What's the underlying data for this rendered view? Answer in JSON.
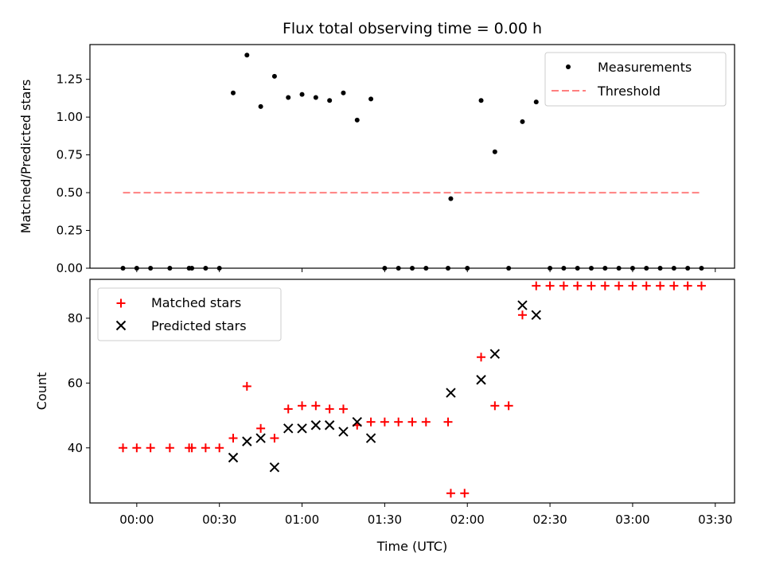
{
  "chart_data": [
    {
      "type": "scatter",
      "title": "Flux total observing time = 0.00 h",
      "xlabel": "",
      "ylabel": "Matched/Predicted stars",
      "xlim": [
        "23:43",
        "03:37"
      ],
      "ylim": [
        0,
        1.48
      ],
      "yticks": [
        "0.00",
        "0.25",
        "0.50",
        "0.75",
        "1.00",
        "1.25"
      ],
      "xtick_times": [
        "00:00",
        "00:30",
        "01:00",
        "01:30",
        "02:00",
        "02:30",
        "03:00",
        "03:30"
      ],
      "legend_position": "top-right",
      "series": [
        {
          "name": "Measurements",
          "kind": "points",
          "color": "#000000",
          "x": [
            "23:55",
            "00:00",
            "00:05",
            "00:12",
            "00:19",
            "00:20",
            "00:25",
            "00:30",
            "00:35",
            "00:40",
            "00:45",
            "00:50",
            "00:55",
            "01:00",
            "01:05",
            "01:10",
            "01:15",
            "01:20",
            "01:25",
            "01:30",
            "01:35",
            "01:40",
            "01:45",
            "01:53",
            "01:54",
            "02:00",
            "02:05",
            "02:10",
            "02:15",
            "02:20",
            "02:25",
            "02:30",
            "02:35",
            "02:40",
            "02:45",
            "02:50",
            "02:55",
            "03:00",
            "03:05",
            "03:10",
            "03:15",
            "03:20",
            "03:25"
          ],
          "y": [
            0,
            0,
            0,
            0,
            0,
            0,
            0,
            0,
            1.16,
            1.41,
            1.07,
            1.27,
            1.13,
            1.15,
            1.13,
            1.11,
            1.16,
            0.98,
            1.12,
            0,
            0,
            0,
            0,
            0,
            0.46,
            0,
            1.11,
            0.77,
            0,
            0.97,
            1.1,
            0,
            0,
            0,
            0,
            0,
            0,
            0,
            0,
            0,
            0,
            0,
            0
          ]
        },
        {
          "name": "Threshold",
          "kind": "dashed-line",
          "color": "#ff8080",
          "x": [
            "23:55",
            "03:25"
          ],
          "y": [
            0.5,
            0.5
          ]
        }
      ]
    },
    {
      "type": "scatter",
      "title": "",
      "xlabel": "Time (UTC)",
      "ylabel": "Count",
      "xlim": [
        "23:43",
        "03:37"
      ],
      "ylim": [
        23,
        92
      ],
      "yticks": [
        "40",
        "60",
        "80"
      ],
      "xtick_labels": [
        "00:00",
        "00:30",
        "01:00",
        "01:30",
        "02:00",
        "02:30",
        "03:00",
        "03:30"
      ],
      "legend_position": "top-left",
      "series": [
        {
          "name": "Matched stars",
          "marker": "plus",
          "color": "#ff0000",
          "x": [
            "23:55",
            "00:00",
            "00:05",
            "00:12",
            "00:19",
            "00:20",
            "00:25",
            "00:30",
            "00:35",
            "00:40",
            "00:45",
            "00:50",
            "00:55",
            "01:00",
            "01:05",
            "01:10",
            "01:15",
            "01:20",
            "01:25",
            "01:30",
            "01:35",
            "01:40",
            "01:45",
            "01:53",
            "01:54",
            "01:59",
            "02:05",
            "02:10",
            "02:15",
            "02:20",
            "02:25",
            "02:30",
            "02:35",
            "02:40",
            "02:45",
            "02:50",
            "02:55",
            "03:00",
            "03:05",
            "03:10",
            "03:15",
            "03:20",
            "03:25"
          ],
          "y": [
            40,
            40,
            40,
            40,
            40,
            40,
            40,
            40,
            43,
            59,
            46,
            43,
            52,
            53,
            53,
            52,
            52,
            47,
            48,
            48,
            48,
            48,
            48,
            48,
            26,
            26,
            68,
            53,
            53,
            81,
            90,
            90,
            90,
            90,
            90,
            90,
            90,
            90,
            90,
            90,
            90,
            90,
            90
          ]
        },
        {
          "name": "Predicted stars",
          "marker": "x",
          "color": "#000000",
          "x": [
            "00:35",
            "00:40",
            "00:45",
            "00:50",
            "00:55",
            "01:00",
            "01:05",
            "01:10",
            "01:15",
            "01:20",
            "01:25",
            "01:54",
            "02:05",
            "02:10",
            "02:20",
            "02:25"
          ],
          "y": [
            37,
            42,
            43,
            34,
            46,
            46,
            47,
            47,
            45,
            48,
            43,
            57,
            61,
            69,
            84,
            81
          ]
        }
      ]
    }
  ]
}
